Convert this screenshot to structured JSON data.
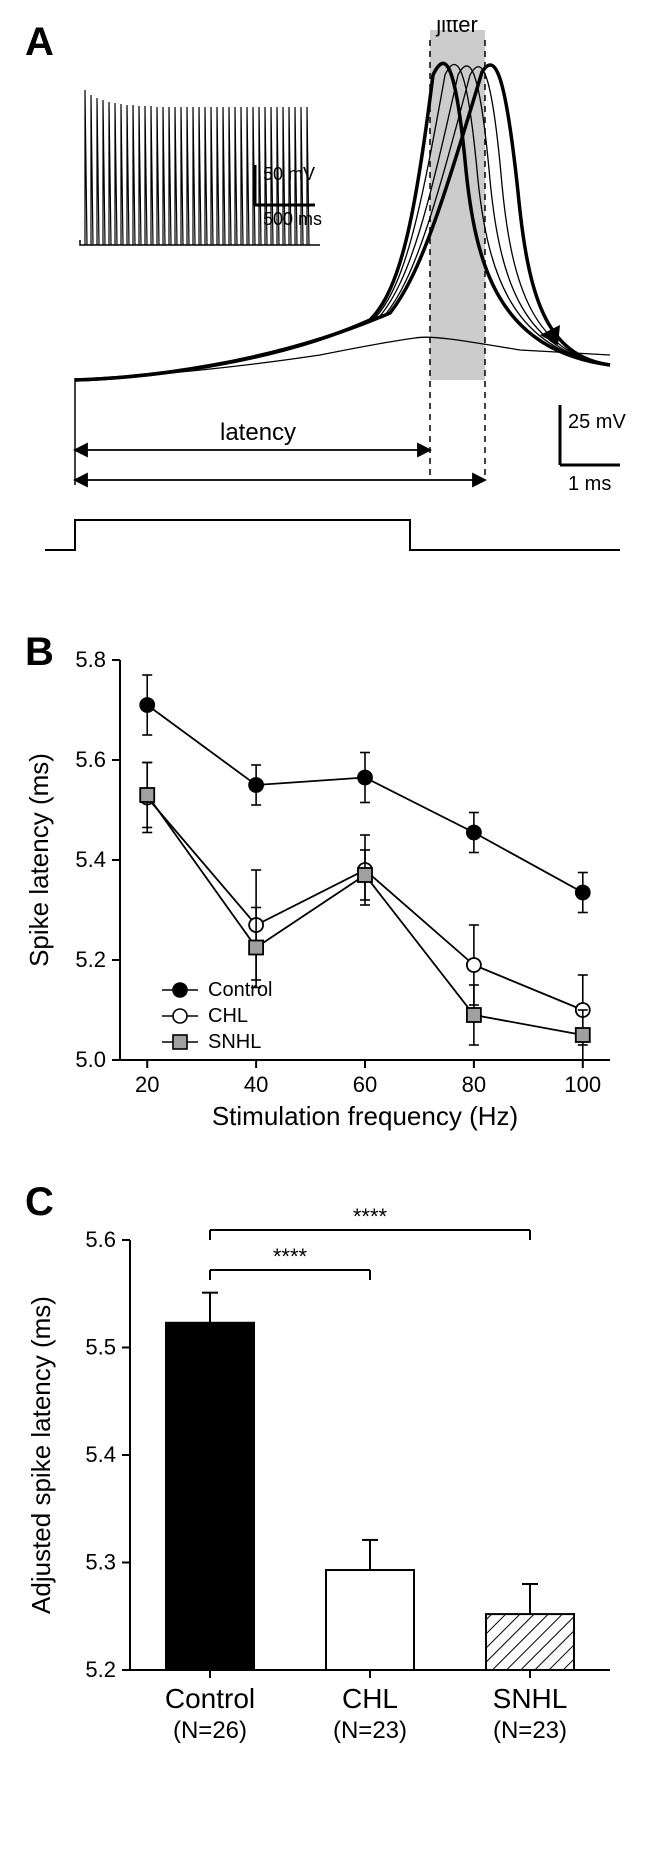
{
  "panelA": {
    "label": "A",
    "jitter_label": "jitter",
    "latency_label": "latency",
    "inset_scale_y": "50 mV",
    "inset_scale_x": "500 ms",
    "main_scale_y": "25 mV",
    "main_scale_x": "1 ms",
    "jitter_band_color": "#cccccc",
    "trace_color": "#000000"
  },
  "panelB": {
    "label": "B",
    "xlabel": "Stimulation frequency (Hz)",
    "ylabel": "Spike latency (ms)",
    "xticks": [
      20,
      40,
      60,
      80,
      100
    ],
    "yticks": [
      5.0,
      5.2,
      5.4,
      5.6,
      5.8
    ],
    "ylim": [
      5.0,
      5.8
    ],
    "xlim": [
      15,
      105
    ],
    "series": {
      "control": {
        "label": "Control",
        "x": [
          20,
          40,
          60,
          80,
          100
        ],
        "y": [
          5.71,
          5.55,
          5.565,
          5.455,
          5.335
        ],
        "err": [
          0.06,
          0.04,
          0.05,
          0.04,
          0.04
        ],
        "marker": "circle",
        "fill": "#000000",
        "stroke": "#000000"
      },
      "chl": {
        "label": "CHL",
        "x": [
          20,
          40,
          60,
          80,
          100
        ],
        "y": [
          5.525,
          5.27,
          5.38,
          5.19,
          5.1
        ],
        "err": [
          0.07,
          0.11,
          0.07,
          0.08,
          0.07
        ],
        "marker": "circle",
        "fill": "#ffffff",
        "stroke": "#000000"
      },
      "snhl": {
        "label": "SNHL",
        "x": [
          20,
          40,
          60,
          80,
          100
        ],
        "y": [
          5.53,
          5.225,
          5.37,
          5.09,
          5.05
        ],
        "err": [
          0.065,
          0.08,
          0.05,
          0.06,
          0.05
        ],
        "marker": "square",
        "fill": "#a0a0a0",
        "stroke": "#000000"
      }
    },
    "line_color": "#000000",
    "marker_size": 7
  },
  "panelC": {
    "label": "C",
    "ylabel": "Adjusted spike latency (ms)",
    "yticks": [
      5.2,
      5.3,
      5.4,
      5.5,
      5.6
    ],
    "ylim": [
      5.2,
      5.6
    ],
    "bars": [
      {
        "label": "Control",
        "n": "(N=26)",
        "value": 5.523,
        "err": 0.028,
        "fill": "#000000",
        "pattern": "solid"
      },
      {
        "label": "CHL",
        "n": "(N=23)",
        "value": 5.293,
        "err": 0.028,
        "fill": "#ffffff",
        "pattern": "solid"
      },
      {
        "label": "SNHL",
        "n": "(N=23)",
        "value": 5.252,
        "err": 0.028,
        "fill": "#ffffff",
        "pattern": "hatch"
      }
    ],
    "sig_marker": "****",
    "bar_width": 0.55
  }
}
